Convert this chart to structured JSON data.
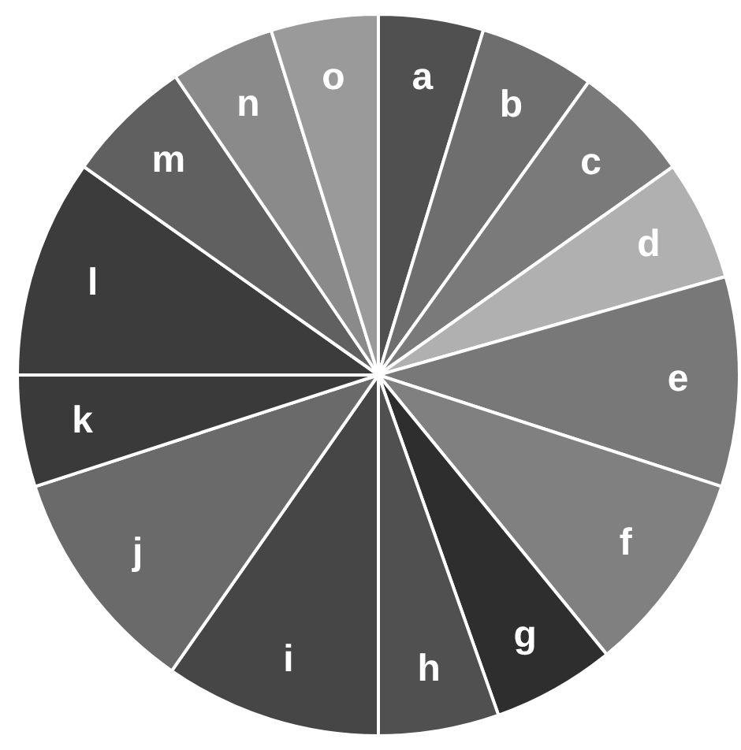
{
  "chart_data": {
    "type": "pie",
    "categories": [
      "a",
      "b",
      "c",
      "d",
      "e",
      "f",
      "g",
      "h",
      "i",
      "j",
      "k",
      "l",
      "m",
      "n",
      "o"
    ],
    "values": [
      4.7,
      5.2,
      5.3,
      5.4,
      9.4,
      9.1,
      5.5,
      5.4,
      9.7,
      10.3,
      5,
      9.8,
      5.7,
      4.7,
      4.8
    ],
    "colors": [
      "#505050",
      "#6e6e6e",
      "#7a7a7a",
      "#b0b0b0",
      "#787878",
      "#808080",
      "#2e2e2e",
      "#505050",
      "#464646",
      "#6a6a6a",
      "#3a3a3a",
      "#3c3c3c",
      "#606060",
      "#8a8a8a",
      "#9a9a9a"
    ],
    "legend": false
  }
}
